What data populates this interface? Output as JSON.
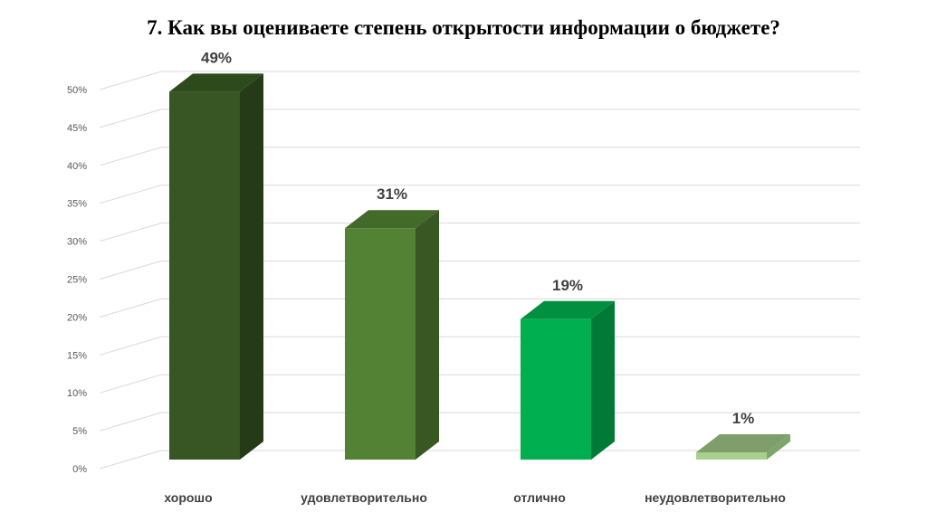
{
  "chart_data": {
    "type": "bar",
    "title": "7. Как вы оцениваете степень открытости информации о бюджете?",
    "categories": [
      "хорошо",
      "удовлетворительно",
      "отлично",
      "неудовлетворительно"
    ],
    "values": [
      49,
      31,
      19,
      1
    ],
    "data_labels": [
      "49%",
      "31%",
      "19%",
      "1%"
    ],
    "ylim": [
      0,
      50
    ],
    "yticks": [
      "0%",
      "5%",
      "10%",
      "15%",
      "20%",
      "25%",
      "30%",
      "35%",
      "40%",
      "45%",
      "50%"
    ],
    "grid": true,
    "style": "3d-column",
    "colors": [
      {
        "front": "#375623",
        "side": "#253a16",
        "top": "#2c4a1b"
      },
      {
        "front": "#548235",
        "side": "#385723",
        "top": "#426a28"
      },
      {
        "front": "#00b050",
        "side": "#007a36",
        "top": "#009040"
      },
      {
        "front": "#a9d18e",
        "side": "#7fa66a",
        "top": "#7f9f6a"
      }
    ]
  }
}
